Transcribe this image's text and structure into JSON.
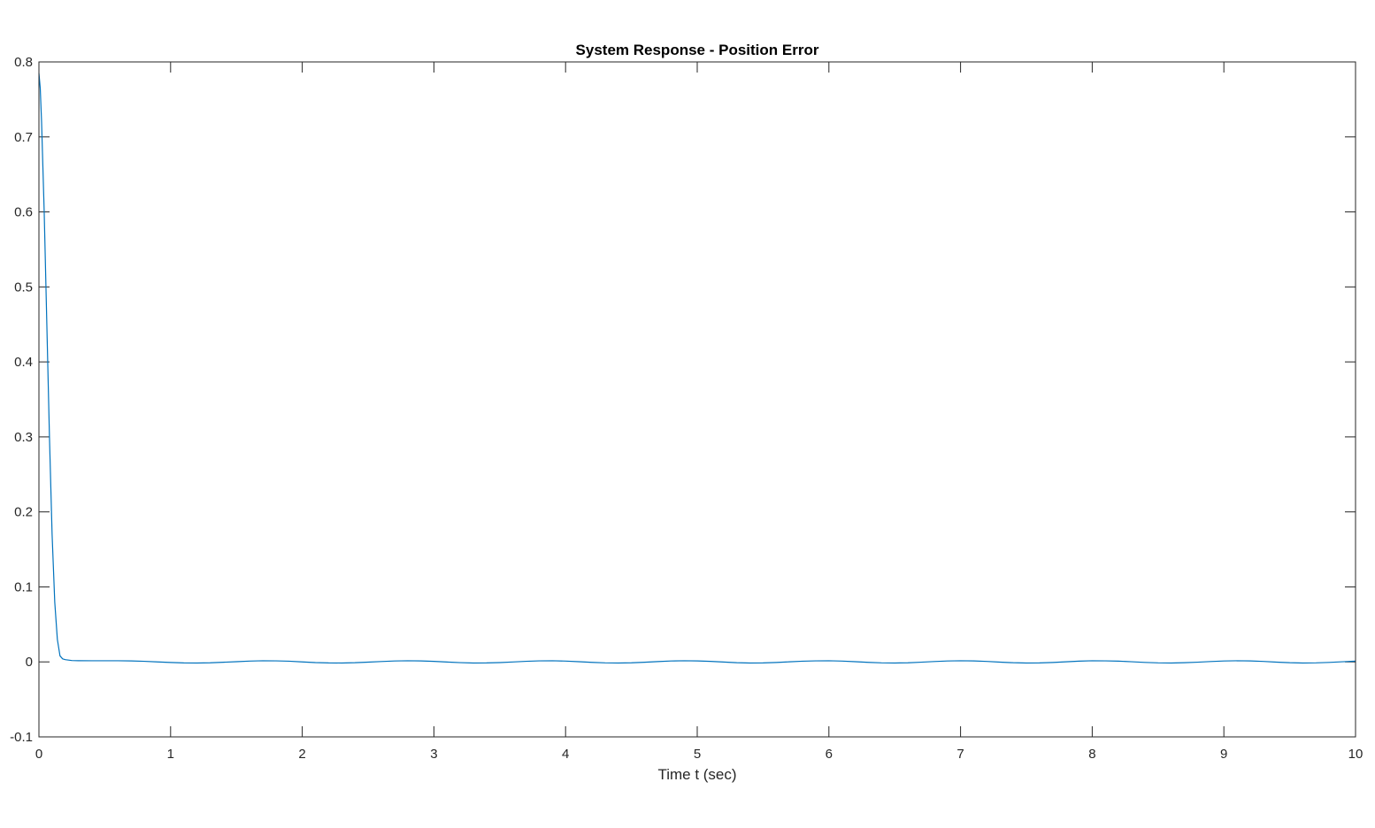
{
  "chart_data": {
    "type": "line",
    "title": "System Response - Position Error",
    "xlabel": "Time t (sec)",
    "ylabel": "",
    "xlim": [
      0,
      10
    ],
    "ylim": [
      -0.1,
      0.8
    ],
    "xticks": [
      0,
      1,
      2,
      3,
      4,
      5,
      6,
      7,
      8,
      9,
      10
    ],
    "xtick_labels": [
      "0",
      "1",
      "2",
      "3",
      "4",
      "5",
      "6",
      "7",
      "8",
      "9",
      "10"
    ],
    "yticks": [
      -0.1,
      0,
      0.1,
      0.2,
      0.3,
      0.4,
      0.5,
      0.6,
      0.7,
      0.8
    ],
    "ytick_labels": [
      "-0.1",
      "0",
      "0.1",
      "0.2",
      "0.3",
      "0.4",
      "0.5",
      "0.6",
      "0.7",
      "0.8"
    ],
    "grid": false,
    "box": true,
    "series": [
      {
        "color": "#0072BD",
        "x": [
          0,
          0.01,
          0.02,
          0.04,
          0.06,
          0.08,
          0.1,
          0.12,
          0.14,
          0.16,
          0.18,
          0.2,
          0.25,
          0.3,
          0.4,
          0.5,
          0.6,
          0.7,
          0.8,
          0.9,
          1.0,
          1.1,
          1.2,
          1.3,
          1.4,
          1.5,
          1.6,
          1.7,
          1.8,
          1.9,
          2.0,
          2.1,
          2.2,
          2.3,
          2.4,
          2.5,
          2.6,
          2.7,
          2.8,
          2.9,
          3.0,
          3.1,
          3.2,
          3.3,
          3.4,
          3.5,
          3.6,
          3.7,
          3.8,
          3.9,
          4.0,
          4.1,
          4.2,
          4.3,
          4.4,
          4.5,
          4.6,
          4.7,
          4.8,
          4.9,
          5.0,
          5.1,
          5.2,
          5.3,
          5.4,
          5.5,
          5.6,
          5.7,
          5.8,
          5.9,
          6.0,
          6.1,
          6.2,
          6.3,
          6.4,
          6.5,
          6.6,
          6.7,
          6.8,
          6.9,
          7.0,
          7.1,
          7.2,
          7.3,
          7.4,
          7.5,
          7.6,
          7.7,
          7.8,
          7.9,
          8.0,
          8.1,
          8.2,
          8.3,
          8.4,
          8.5,
          8.6,
          8.7,
          8.8,
          8.9,
          9.0,
          9.1,
          9.2,
          9.3,
          9.4,
          9.5,
          9.6,
          9.7,
          9.8,
          9.9,
          10.0
        ],
        "y": [
          0.785,
          0.765,
          0.72,
          0.6,
          0.45,
          0.3,
          0.17,
          0.08,
          0.03,
          0.008,
          0.004,
          0.003,
          0.0018,
          0.0016,
          0.0015,
          0.0015,
          0.0015,
          0.0013,
          0.0008,
          0.0,
          -0.0008,
          -0.0014,
          -0.0015,
          -0.0012,
          -0.0005,
          0.0003,
          0.0011,
          0.0015,
          0.0014,
          0.0009,
          0.0,
          -0.0009,
          -0.0014,
          -0.0015,
          -0.0011,
          -0.0003,
          0.0005,
          0.0012,
          0.0015,
          0.0013,
          0.0007,
          -0.0002,
          -0.001,
          -0.0015,
          -0.0014,
          -0.0009,
          -0.0001,
          0.0008,
          0.0014,
          0.0015,
          0.0011,
          0.0003,
          -0.0006,
          -0.0013,
          -0.0015,
          -0.0012,
          -0.0005,
          0.0004,
          0.0012,
          0.0015,
          0.0013,
          0.0007,
          -0.0002,
          -0.0011,
          -0.0015,
          -0.0014,
          -0.0008,
          0.0001,
          0.0009,
          0.0014,
          0.0015,
          0.0011,
          0.0003,
          -0.0006,
          -0.0013,
          -0.0015,
          -0.0012,
          -0.0004,
          0.0005,
          0.0012,
          0.0015,
          0.0013,
          0.0006,
          -0.0003,
          -0.0011,
          -0.0015,
          -0.0014,
          -0.0008,
          0.0001,
          0.001,
          0.0015,
          0.0014,
          0.001,
          0.0002,
          -0.0007,
          -0.0013,
          -0.0015,
          -0.0011,
          -0.0004,
          0.0005,
          0.0012,
          0.0015,
          0.0013,
          0.0006,
          -0.0003,
          -0.0011,
          -0.0015,
          -0.0013,
          -0.0007,
          0.0002,
          0.001
        ]
      }
    ]
  }
}
